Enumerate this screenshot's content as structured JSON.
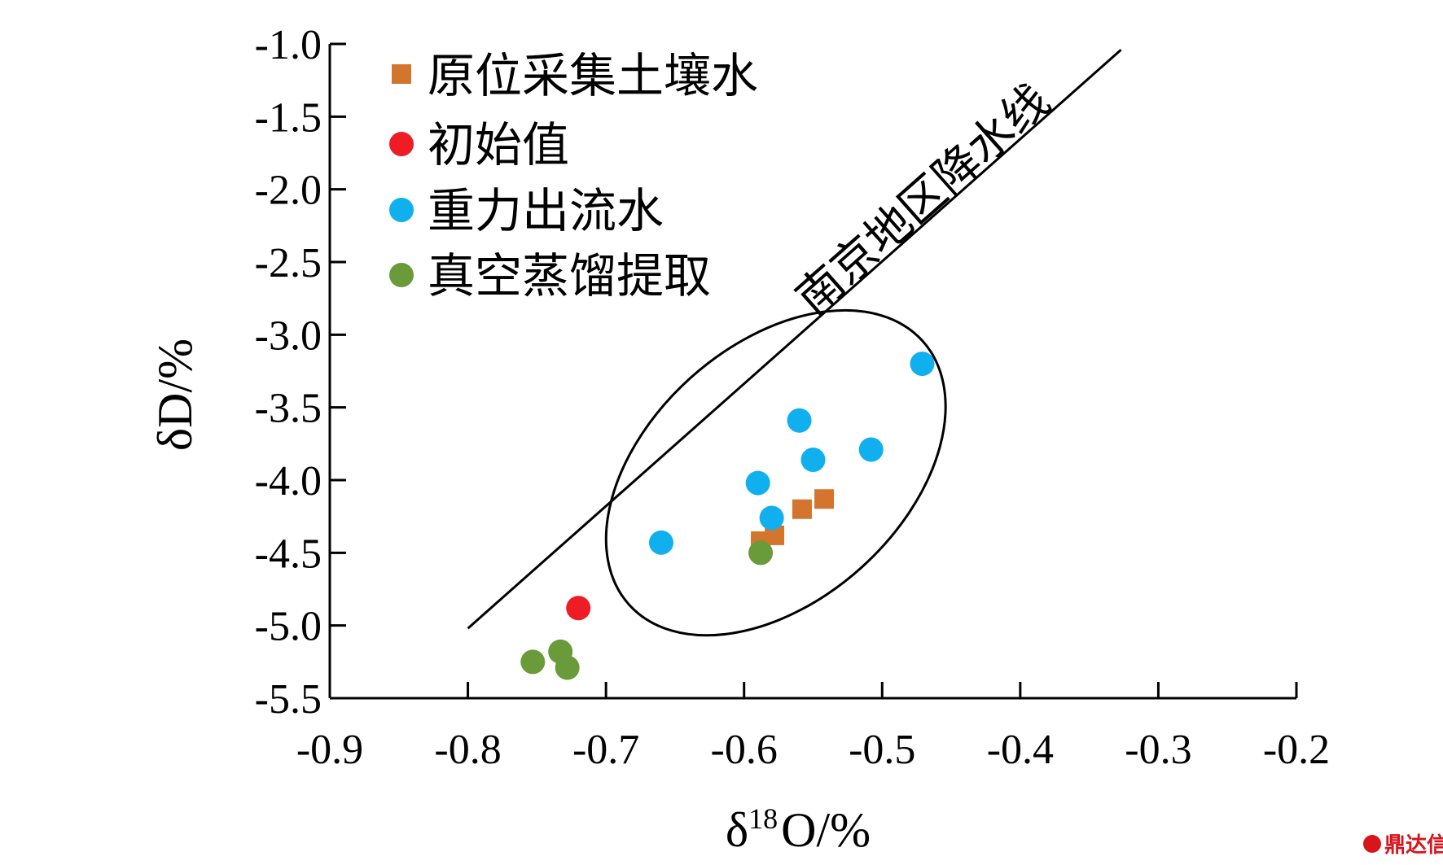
{
  "chart_data": {
    "type": "scatter",
    "xlabel": {
      "prefix": "δ",
      "sup": "18",
      "suffix": "O/%"
    },
    "ylabel": "δD/%",
    "xlim": [
      -0.9,
      -0.2
    ],
    "ylim": [
      -5.5,
      -1.0
    ],
    "x_ticks": [
      -0.9,
      -0.8,
      -0.7,
      -0.6,
      -0.5,
      -0.4,
      -0.3,
      -0.2
    ],
    "x_tick_labels": [
      "-0.9",
      "-0.8",
      "-0.7",
      "-0.6",
      "-0.5",
      "-0.4",
      "-0.3",
      "-0.2"
    ],
    "y_ticks": [
      -1.0,
      -1.5,
      -2.0,
      -2.5,
      -3.0,
      -3.5,
      -4.0,
      -4.5,
      -5.0,
      -5.5
    ],
    "y_tick_labels": [
      "-1.0",
      "-1.5",
      "-2.0",
      "-2.5",
      "-3.0",
      "-3.5",
      "-4.0",
      "-4.5",
      "-5.0",
      "-5.5"
    ],
    "grid": false,
    "legend_position": "top-left",
    "series": [
      {
        "name": "原位采集土壤水",
        "marker": "square",
        "color": "#d3752c",
        "points": [
          [
            -0.558,
            -4.2
          ],
          [
            -0.542,
            -4.13
          ],
          [
            -0.578,
            -4.38
          ],
          [
            -0.588,
            -4.42
          ]
        ]
      },
      {
        "name": "初始值",
        "marker": "circle",
        "color": "#ee1c25",
        "points": [
          [
            -0.72,
            -4.88
          ]
        ]
      },
      {
        "name": "重力出流水",
        "marker": "circle",
        "color": "#10b0ef",
        "points": [
          [
            -0.471,
            -3.2
          ],
          [
            -0.56,
            -3.59
          ],
          [
            -0.508,
            -3.79
          ],
          [
            -0.55,
            -3.86
          ],
          [
            -0.59,
            -4.02
          ],
          [
            -0.58,
            -4.26
          ],
          [
            -0.66,
            -4.43
          ]
        ]
      },
      {
        "name": "真空蒸馏提取",
        "marker": "circle",
        "color": "#6a9b3a",
        "points": [
          [
            -0.588,
            -4.5
          ],
          [
            -0.753,
            -5.25
          ],
          [
            -0.733,
            -5.18
          ],
          [
            -0.728,
            -5.29
          ]
        ]
      }
    ],
    "reference_line": {
      "label": "南京地区降水线",
      "x": [
        -0.8,
        -0.327
      ],
      "y": [
        -5.02,
        -1.04
      ]
    },
    "annotations": [
      {
        "type": "ellipse",
        "center": [
          -0.577,
          -3.95
        ],
        "semi_axes": [
          0.0675,
          0.99
        ],
        "rotation_deg": 42
      }
    ]
  },
  "watermark": "鼎达信",
  "colors": {
    "axis": "#000000",
    "background": "#ffffff"
  }
}
